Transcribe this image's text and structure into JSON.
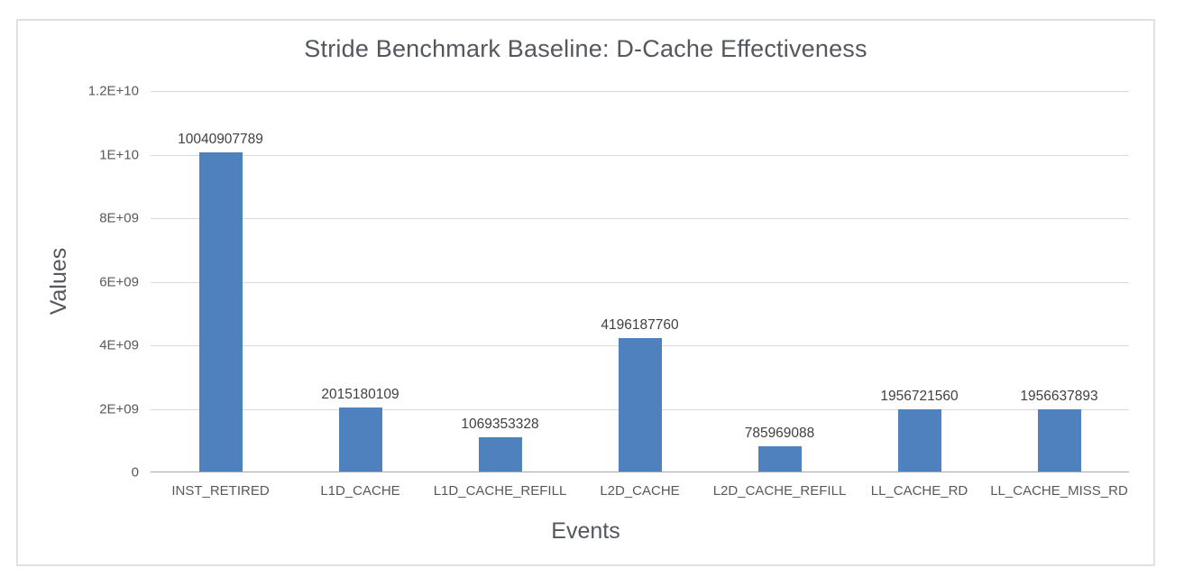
{
  "chart_data": {
    "type": "bar",
    "title": "Stride Benchmark Baseline: D-Cache Effectiveness",
    "xlabel": "Events",
    "ylabel": "Values",
    "categories": [
      "INST_RETIRED",
      "L1D_CACHE",
      "L1D_CACHE_REFILL",
      "L2D_CACHE",
      "L2D_CACHE_REFILL",
      "LL_CACHE_RD",
      "LL_CACHE_MISS_RD"
    ],
    "values": [
      10040907789,
      2015180109,
      1069353328,
      4196187760,
      785969088,
      1956721560,
      1956637893
    ],
    "value_labels": [
      "10040907789",
      "2015180109",
      "1069353328",
      "4196187760",
      "785969088",
      "1956721560",
      "1956637893"
    ],
    "ylim": [
      0,
      12000000000
    ],
    "yticks": {
      "values": [
        0,
        2000000000,
        4000000000,
        6000000000,
        8000000000,
        10000000000,
        12000000000
      ],
      "labels": [
        "0",
        "2E+09",
        "4E+09",
        "6E+09",
        "8E+09",
        "1E+10",
        "1.2E+10"
      ]
    },
    "grid": "horizontal",
    "legend": "none"
  },
  "colors": {
    "bar": "#4E81BD",
    "gridline": "#D9D9D9",
    "axis_line": "#A6A6A6",
    "tick_label": "#595959",
    "value_label": "#404040",
    "text": "#54585E",
    "chart_border": "#E0E0E0",
    "background": "#FFFFFF"
  }
}
